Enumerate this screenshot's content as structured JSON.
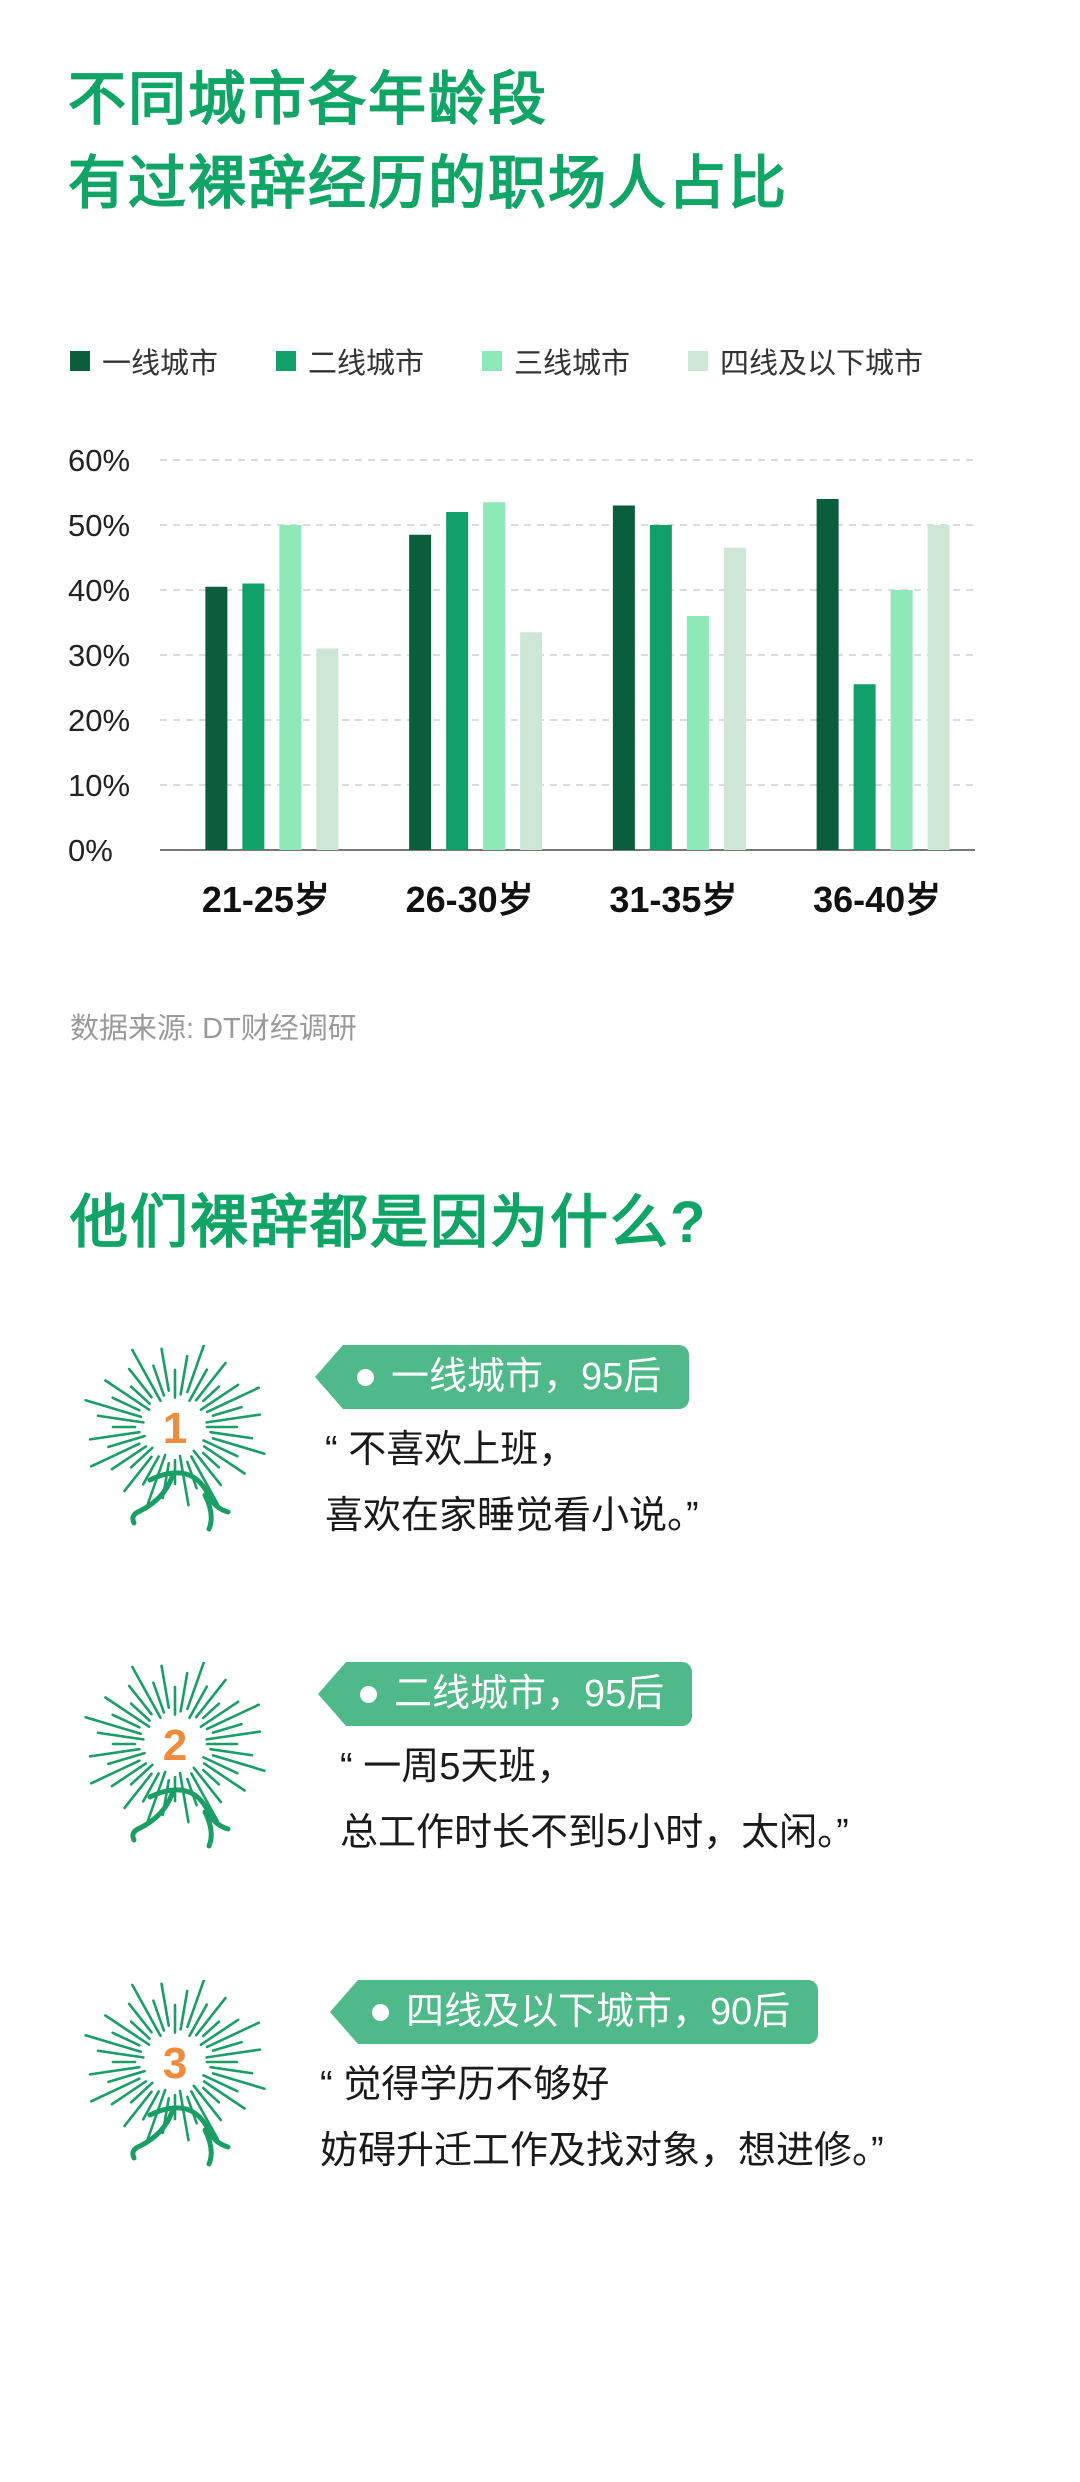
{
  "title": {
    "line1": "不同城市各年龄段",
    "line2": "有过裸辞经历的职场人占比"
  },
  "legend": [
    {
      "label": "一线城市",
      "color": "#0b5e3c"
    },
    {
      "label": "二线城市",
      "color": "#11a06a"
    },
    {
      "label": "三线城市",
      "color": "#8fe8b7"
    },
    {
      "label": "四线及以下城市",
      "color": "#cde6d6"
    }
  ],
  "chart_data": {
    "type": "bar",
    "title": "不同城市各年龄段有过裸辞经历的职场人占比",
    "categories": [
      "21-25岁",
      "26-30岁",
      "31-35岁",
      "36-40岁"
    ],
    "series": [
      {
        "name": "一线城市",
        "color": "#0b5e3c",
        "values": [
          40.5,
          48.5,
          53,
          54
        ]
      },
      {
        "name": "二线城市",
        "color": "#11a06a",
        "values": [
          41,
          52,
          50,
          25.5
        ]
      },
      {
        "name": "三线城市",
        "color": "#8fe8b7",
        "values": [
          50,
          53.5,
          36,
          40
        ]
      },
      {
        "name": "四线及以下城市",
        "color": "#cde6d6",
        "values": [
          31,
          33.5,
          46.5,
          50
        ]
      }
    ],
    "y_ticks": [
      "0%",
      "10%",
      "20%",
      "30%",
      "40%",
      "50%",
      "60%"
    ],
    "ylim": [
      0,
      60
    ],
    "xlabel": "",
    "ylabel": "",
    "grid": true,
    "legend_position": "top"
  },
  "source": "数据来源: DT财经调研",
  "section2": {
    "heading": "他们裸辞都是因为什么?"
  },
  "reasons": [
    {
      "num": "1",
      "tag": "一线城市，95后",
      "line1": "“ 不喜欢上班，",
      "line2": "喜欢在家睡觉看小说。”"
    },
    {
      "num": "2",
      "tag": "二线城市，95后",
      "line1": "“ 一周5天班，",
      "line2": "总工作时长不到5小时，太闲。”"
    },
    {
      "num": "3",
      "tag": "四线及以下城市，90后",
      "line1": "“ 觉得学历不够好",
      "line2": "妨碍升迁工作及找对象，想进修。”"
    }
  ]
}
